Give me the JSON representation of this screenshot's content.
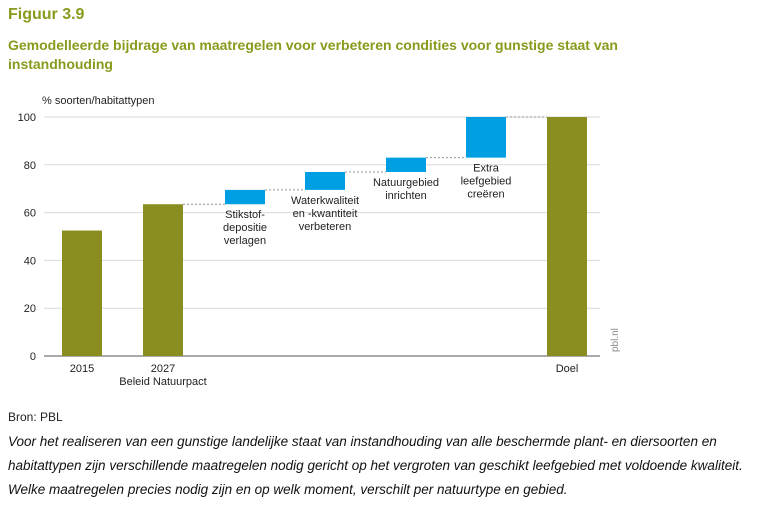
{
  "figure": {
    "label": "Figuur 3.9",
    "title": "Gemodelleerde bijdrage van maatregelen voor verbeteren condities voor gunstige staat van instandhouding",
    "source": "Bron: PBL",
    "caption": "Voor het realiseren van een gunstige landelijke staat van instandhouding van alle beschermde plant- en diersoorten en habitattypen zijn verschillende maatregelen nodig gericht op het vergroten van geschikt leefgebied met voldoende kwaliteit. Welke maatregelen precies nodig zijn en op welk moment, verschilt per natuurtype en gebied.",
    "watermark": "pbl.nl"
  },
  "chart_data": {
    "type": "bar",
    "subtype": "waterfall",
    "ylabel": "% soorten/habitattypen",
    "ylim": [
      0,
      100
    ],
    "yticks": [
      0,
      20,
      40,
      60,
      80,
      100
    ],
    "grid": true,
    "colors": {
      "total": "#8a8d1f",
      "step": "#009fe3",
      "connector": "#aaaaaa"
    },
    "bars": [
      {
        "kind": "total",
        "labels": [
          "2015"
        ],
        "start": 0,
        "end": 52.5
      },
      {
        "kind": "total",
        "labels": [
          "2027",
          "Beleid Natuurpact"
        ],
        "start": 0,
        "end": 63.5
      },
      {
        "kind": "step",
        "labels": [
          "Stikstof-",
          "depositie",
          "verlagen"
        ],
        "start": 63.5,
        "end": 69.5
      },
      {
        "kind": "step",
        "labels": [
          "Waterkwaliteit",
          "en -kwantiteit",
          "verbeteren"
        ],
        "start": 69.5,
        "end": 77
      },
      {
        "kind": "step",
        "labels": [
          "Natuurgebied",
          "inrichten"
        ],
        "start": 77,
        "end": 83
      },
      {
        "kind": "step",
        "labels": [
          "Extra",
          "leefgebied",
          "creëren"
        ],
        "start": 83,
        "end": 100
      },
      {
        "kind": "total",
        "labels": [
          "Doel"
        ],
        "start": 0,
        "end": 100
      }
    ]
  }
}
